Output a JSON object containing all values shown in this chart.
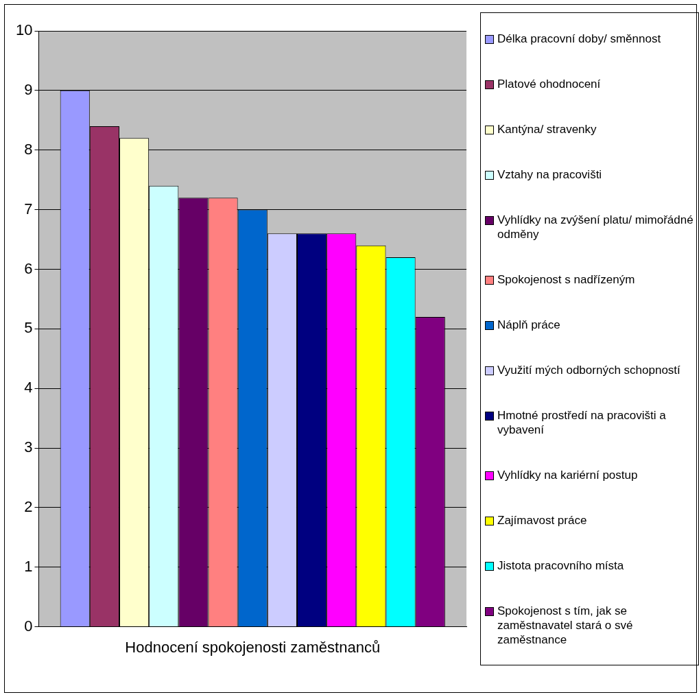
{
  "chart_data": {
    "type": "bar",
    "categories": [
      "Hodnocení spokojenosti zaměstnanců"
    ],
    "ylim": [
      0,
      10
    ],
    "yticks": [
      0,
      1,
      2,
      3,
      4,
      5,
      6,
      7,
      8,
      9,
      10
    ],
    "grid": "y",
    "legend": "right",
    "series": [
      {
        "name": "Délka pracovní doby/ směnnost",
        "color": "#9999ff",
        "values": [
          9
        ]
      },
      {
        "name": "Platové ohodnocení",
        "color": "#993366",
        "values": [
          8.4
        ]
      },
      {
        "name": "Kantýna/ stravenky",
        "color": "#ffffcc",
        "values": [
          8.2
        ]
      },
      {
        "name": "Vztahy na pracovišti",
        "color": "#ccffff",
        "values": [
          7.4
        ]
      },
      {
        "name": "Vyhlídky na zvýšení platu/ mimořádné odměny",
        "color": "#660066",
        "values": [
          7.2
        ]
      },
      {
        "name": "Spokojenost s nadřízeným",
        "color": "#ff8080",
        "values": [
          7.2
        ]
      },
      {
        "name": "Náplň práce",
        "color": "#0066cc",
        "values": [
          7
        ]
      },
      {
        "name": "Využití mých odborných schopností",
        "color": "#ccccff",
        "values": [
          6.6
        ]
      },
      {
        "name": "Hmotné prostředí na pracovišti a vybavení",
        "color": "#000080",
        "values": [
          6.6
        ]
      },
      {
        "name": "Vyhlídky na kariérní postup",
        "color": "#ff00ff",
        "values": [
          6.6
        ]
      },
      {
        "name": "Zajímavost práce",
        "color": "#ffff00",
        "values": [
          6.4
        ]
      },
      {
        "name": "Jistota pracovního místa",
        "color": "#00ffff",
        "values": [
          6.2
        ]
      },
      {
        "name": "Spokojenost s tím, jak se zaměstnavatel stará o své zaměstnance",
        "color": "#800080",
        "values": [
          5.2
        ]
      }
    ]
  }
}
